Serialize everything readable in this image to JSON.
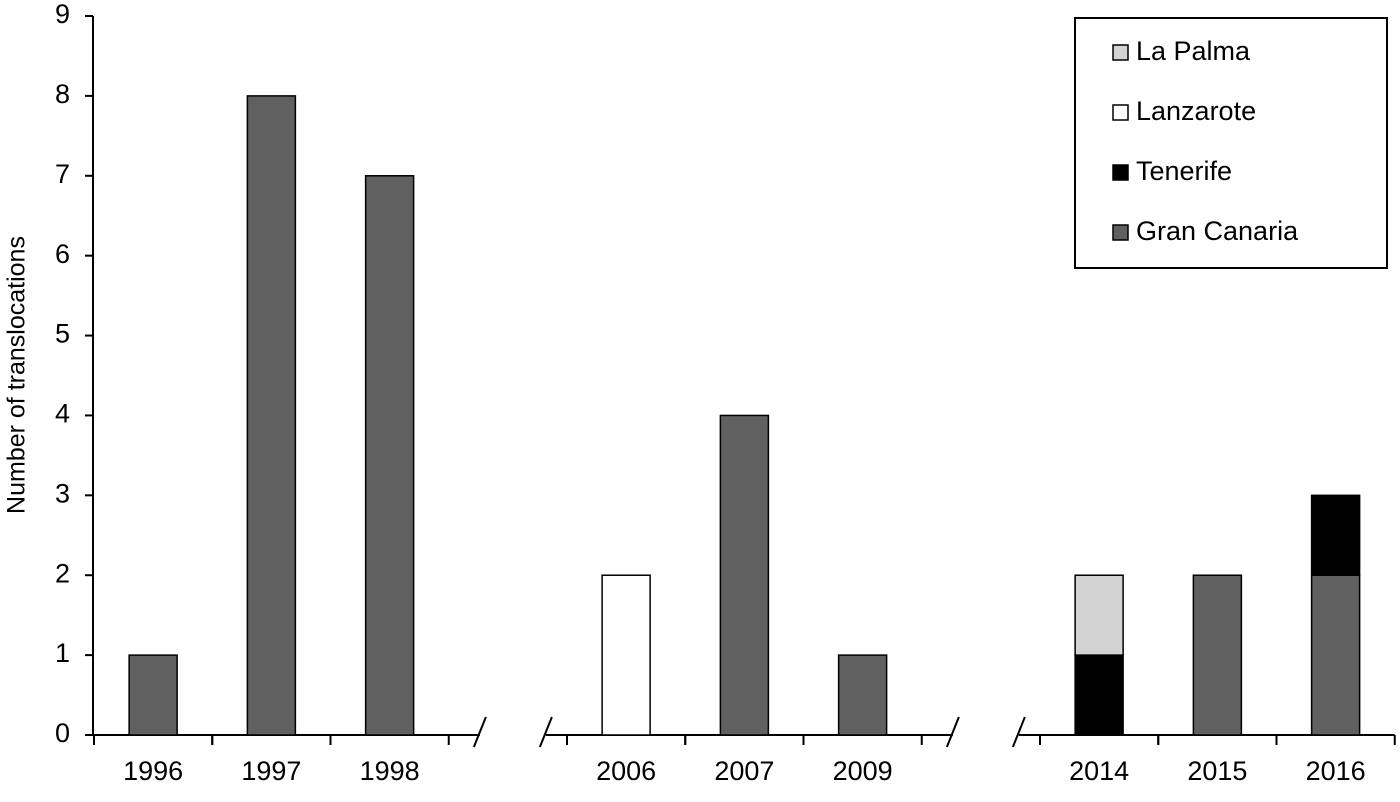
{
  "chart_data": {
    "type": "stacked-bar",
    "y_label": "Number of translocations",
    "categories": [
      "1996",
      "1997",
      "1998",
      null,
      "2006",
      "2007",
      "2009",
      null,
      "2014",
      "2015",
      "2016"
    ],
    "series": [
      {
        "name": "Gran Canaria",
        "color": "#606060",
        "values": [
          1,
          8,
          7,
          null,
          0,
          4,
          1,
          null,
          0,
          2,
          2
        ]
      },
      {
        "name": "Tenerife",
        "color": "#000000",
        "values": [
          0,
          0,
          0,
          null,
          0,
          0,
          0,
          null,
          1,
          0,
          1
        ]
      },
      {
        "name": "Lanzarote",
        "color": "#ffffff",
        "values": [
          0,
          0,
          0,
          null,
          2,
          0,
          0,
          null,
          0,
          0,
          0
        ]
      },
      {
        "name": "La Palma",
        "color": "#d3d3d3",
        "values": [
          0,
          0,
          0,
          null,
          0,
          0,
          0,
          null,
          1,
          0,
          0
        ]
      }
    ],
    "ylim": [
      0,
      9
    ],
    "yticks": [
      0,
      1,
      2,
      3,
      4,
      5,
      6,
      7,
      8,
      9
    ],
    "grid": false,
    "legend": "top-right"
  }
}
